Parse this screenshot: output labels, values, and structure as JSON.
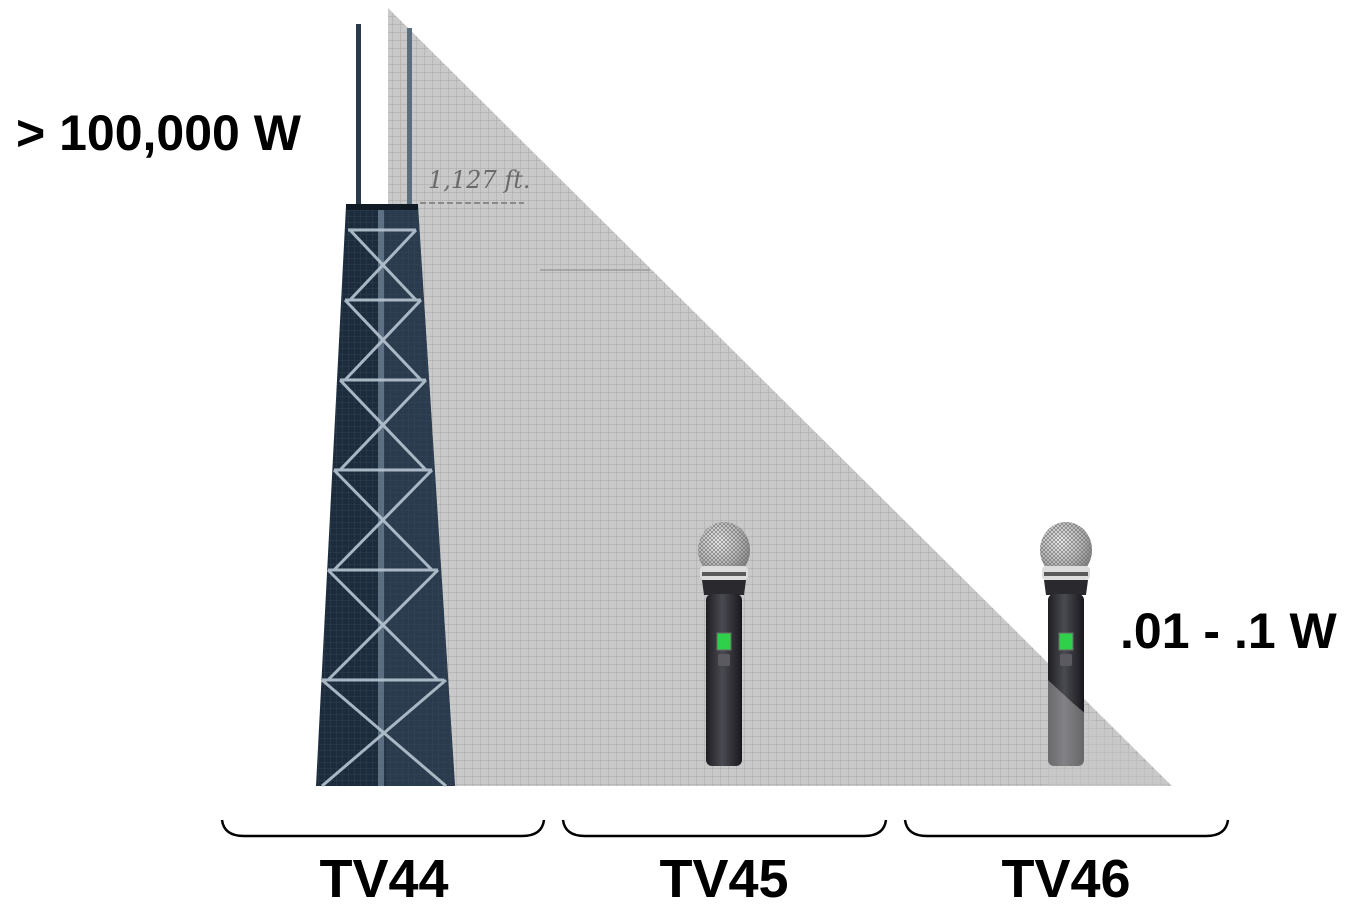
{
  "labels": {
    "high_power": "> 100,000 W",
    "low_power": ".01 - .1 W",
    "height_note": "1,127 ft."
  },
  "channels": [
    {
      "label": "TV44"
    },
    {
      "label": "TV45"
    },
    {
      "label": "TV46"
    }
  ],
  "colors": {
    "signal_fill": "#c8c8c8",
    "grid_line": "#a9a9a9",
    "tower_dark": "#1a2a3a",
    "tower_light": "#9aa8b4",
    "mic_body": "#2c2c30",
    "mic_screen": "#2fd04a"
  },
  "icons": [
    "tower-icon",
    "microphone-icon",
    "microphone-icon"
  ]
}
